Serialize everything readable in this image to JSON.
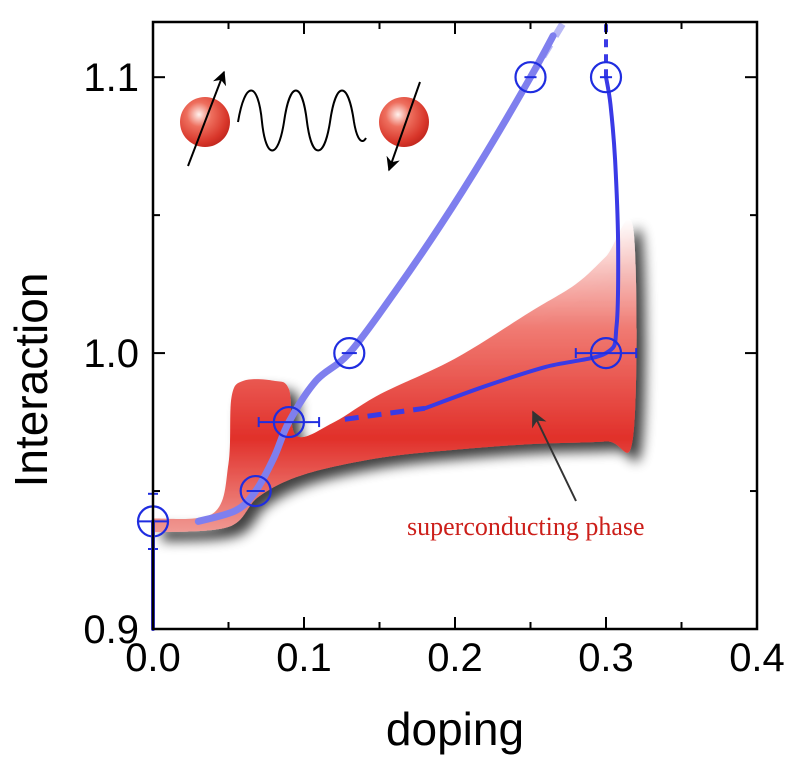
{
  "chart_data": {
    "type": "scatter",
    "xlabel": "doping",
    "ylabel": "Interaction",
    "xlim": [
      0.0,
      0.4
    ],
    "ylim": [
      0.9,
      1.12
    ],
    "x_ticks": [
      {
        "value": 0.0,
        "label": "0.0"
      },
      {
        "value": 0.1,
        "label": "0.1"
      },
      {
        "value": 0.2,
        "label": "0.2"
      },
      {
        "value": 0.3,
        "label": "0.3"
      },
      {
        "value": 0.4,
        "label": "0.4"
      }
    ],
    "y_ticks": [
      {
        "value": 0.9,
        "label": "0.9"
      },
      {
        "value": 1.0,
        "label": "1.0"
      },
      {
        "value": 1.1,
        "label": "1.1"
      }
    ],
    "x_minor_ticks": [
      0.05,
      0.15,
      0.25,
      0.35
    ],
    "y_minor_ticks": [
      0.95,
      1.05
    ],
    "grid": false,
    "legend": "none",
    "annotation": {
      "text": "superconducting phase",
      "color": "#cc1f1a"
    },
    "series": [
      {
        "color": "#7f7fee",
        "style": "thick-line",
        "line": [
          [
            0.03,
            0.939
          ],
          [
            0.055,
            0.943
          ],
          [
            0.068,
            0.95
          ],
          [
            0.08,
            0.962
          ],
          [
            0.09,
            0.975
          ],
          [
            0.108,
            0.99
          ],
          [
            0.13,
            1.0
          ],
          [
            0.16,
            1.022
          ],
          [
            0.19,
            1.046
          ],
          [
            0.22,
            1.072
          ],
          [
            0.25,
            1.1
          ],
          [
            0.265,
            1.115
          ]
        ],
        "dashed_extension": [
          [
            0.25,
            1.1
          ],
          [
            0.272,
            1.12
          ]
        ],
        "points": [
          {
            "x": 0.0,
            "y": 0.939,
            "yerr": 0.01
          },
          {
            "x": 0.068,
            "y": 0.95,
            "xerr": 0.006
          },
          {
            "x": 0.09,
            "y": 0.975,
            "xerr": 0.02
          },
          {
            "x": 0.13,
            "y": 1.0,
            "xerr": 0.005
          },
          {
            "x": 0.25,
            "y": 1.1,
            "xerr": 0.004
          }
        ]
      },
      {
        "color": "#3a3ae6",
        "style": "line",
        "dashed_segment": [
          [
            0.127,
            0.976
          ],
          [
            0.18,
            0.98
          ]
        ],
        "line": [
          [
            0.18,
            0.98
          ],
          [
            0.22,
            0.988
          ],
          [
            0.26,
            0.995
          ],
          [
            0.3,
            1.0
          ],
          [
            0.307,
            1.01
          ],
          [
            0.308,
            1.04
          ],
          [
            0.306,
            1.07
          ],
          [
            0.303,
            1.09
          ],
          [
            0.3,
            1.1
          ]
        ],
        "dashed_extension": [
          [
            0.3,
            1.1
          ],
          [
            0.3,
            1.12
          ]
        ],
        "points": [
          {
            "x": 0.3,
            "y": 1.0,
            "xerr": 0.02
          },
          {
            "x": 0.3,
            "y": 1.1,
            "xerr": 0.004
          }
        ]
      },
      {
        "color": "#3a3ae6",
        "style": "vertical-line",
        "line": [
          [
            0.0,
            0.9
          ],
          [
            0.0,
            0.939
          ]
        ]
      }
    ],
    "phase_region": {
      "color": "#e5352f",
      "boundary": [
        [
          0.0,
          0.935
        ],
        [
          0.05,
          0.937
        ],
        [
          0.07,
          0.948
        ],
        [
          0.1,
          0.956
        ],
        [
          0.15,
          0.962
        ],
        [
          0.2,
          0.965
        ],
        [
          0.25,
          0.967
        ],
        [
          0.3,
          0.968
        ],
        [
          0.318,
          0.97
        ],
        [
          0.318,
          1.045
        ],
        [
          0.3,
          1.035
        ],
        [
          0.28,
          1.025
        ],
        [
          0.25,
          1.015
        ],
        [
          0.2,
          0.998
        ],
        [
          0.15,
          0.985
        ],
        [
          0.12,
          0.975
        ],
        [
          0.095,
          0.97
        ],
        [
          0.09,
          0.987
        ],
        [
          0.08,
          0.99
        ],
        [
          0.06,
          0.99
        ],
        [
          0.052,
          0.984
        ],
        [
          0.05,
          0.96
        ],
        [
          0.04,
          0.942
        ],
        [
          0.0,
          0.94
        ]
      ]
    }
  }
}
